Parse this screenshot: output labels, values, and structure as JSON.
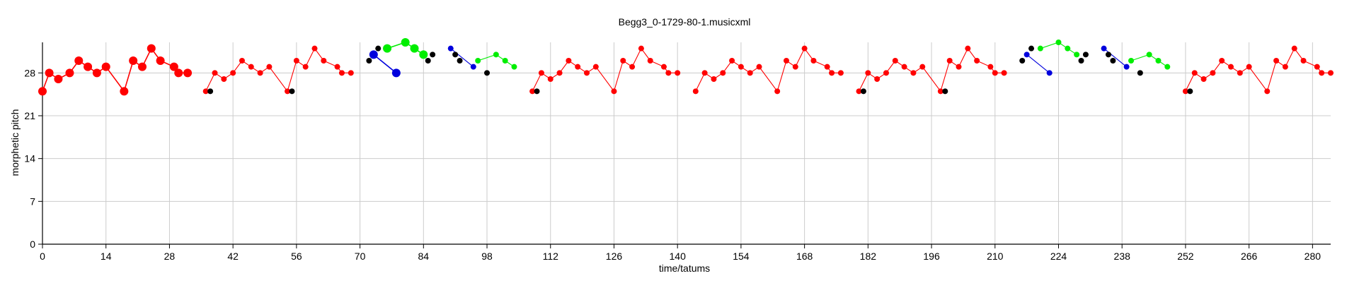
{
  "chart_data": {
    "type": "scatter",
    "title": "Begg3_0-1729-80-1.musicxml",
    "xlabel": "time/tatums",
    "ylabel": "morphetic pitch",
    "xlim": [
      0,
      284
    ],
    "ylim": [
      0,
      33
    ],
    "xticks": [
      0,
      14,
      28,
      42,
      56,
      70,
      84,
      98,
      112,
      126,
      140,
      154,
      168,
      182,
      196,
      210,
      224,
      238,
      252,
      266,
      280
    ],
    "yticks": [
      0,
      7,
      14,
      21,
      28
    ],
    "grid": true,
    "colors": {
      "red": "#ff0000",
      "blue": "#0000dd",
      "green": "#00ee00",
      "black": "#000000",
      "grid": "#cccccc",
      "axis": "#000000"
    },
    "series": [
      {
        "color": "red",
        "size": "large",
        "points": [
          [
            0,
            25
          ],
          [
            1.5,
            28
          ],
          [
            3.5,
            27
          ],
          [
            6,
            28
          ],
          [
            8,
            30
          ],
          [
            10,
            29
          ],
          [
            12,
            28
          ],
          [
            14,
            29
          ],
          [
            18,
            25
          ],
          [
            20,
            30
          ],
          [
            22,
            29
          ],
          [
            24,
            32
          ],
          [
            26,
            30
          ],
          [
            29,
            29
          ],
          [
            30,
            28
          ],
          [
            32,
            28
          ]
        ]
      },
      {
        "color": "red",
        "size": "small",
        "points": [
          [
            36,
            25
          ],
          [
            38,
            28
          ],
          [
            40,
            27
          ],
          [
            42,
            28
          ],
          [
            44,
            30
          ],
          [
            46,
            29
          ],
          [
            48,
            28
          ],
          [
            50,
            29
          ],
          [
            54,
            25
          ],
          [
            56,
            30
          ],
          [
            58,
            29
          ],
          [
            60,
            32
          ],
          [
            62,
            30
          ],
          [
            65,
            29
          ],
          [
            66,
            28
          ],
          [
            68,
            28
          ]
        ]
      },
      {
        "color": "black",
        "size": "small",
        "line": false,
        "points": [
          [
            37,
            25
          ],
          [
            55,
            25
          ]
        ]
      },
      {
        "color": "black",
        "size": "small",
        "line": false,
        "points": [
          [
            72,
            30
          ],
          [
            74,
            32
          ]
        ]
      },
      {
        "color": "blue",
        "size": "large",
        "points": [
          [
            73,
            31
          ],
          [
            78,
            28
          ]
        ]
      },
      {
        "color": "green",
        "size": "large",
        "points": [
          [
            76,
            32
          ],
          [
            80,
            33
          ],
          [
            82,
            32
          ],
          [
            84,
            31
          ]
        ]
      },
      {
        "color": "black",
        "size": "small",
        "line": false,
        "points": [
          [
            85,
            30
          ],
          [
            86,
            31
          ]
        ]
      },
      {
        "color": "blue",
        "size": "small",
        "points": [
          [
            90,
            32
          ],
          [
            95,
            29
          ]
        ]
      },
      {
        "color": "black",
        "size": "small",
        "line": false,
        "points": [
          [
            91,
            31
          ],
          [
            92,
            30
          ],
          [
            98,
            28
          ]
        ]
      },
      {
        "color": "green",
        "size": "small",
        "points": [
          [
            96,
            30
          ],
          [
            100,
            31
          ],
          [
            102,
            30
          ],
          [
            104,
            29
          ]
        ]
      },
      {
        "color": "red",
        "size": "small",
        "points": [
          [
            108,
            25
          ],
          [
            110,
            28
          ],
          [
            112,
            27
          ],
          [
            114,
            28
          ],
          [
            116,
            30
          ],
          [
            118,
            29
          ],
          [
            120,
            28
          ],
          [
            122,
            29
          ],
          [
            126,
            25
          ],
          [
            128,
            30
          ],
          [
            130,
            29
          ],
          [
            132,
            32
          ],
          [
            134,
            30
          ],
          [
            137,
            29
          ],
          [
            138,
            28
          ],
          [
            140,
            28
          ]
        ]
      },
      {
        "color": "black",
        "size": "small",
        "line": false,
        "points": [
          [
            109,
            25
          ]
        ]
      },
      {
        "color": "red",
        "size": "small",
        "points": [
          [
            144,
            25
          ],
          [
            146,
            28
          ],
          [
            148,
            27
          ],
          [
            150,
            28
          ],
          [
            152,
            30
          ],
          [
            154,
            29
          ],
          [
            156,
            28
          ],
          [
            158,
            29
          ],
          [
            162,
            25
          ],
          [
            164,
            30
          ],
          [
            166,
            29
          ],
          [
            168,
            32
          ],
          [
            170,
            30
          ],
          [
            173,
            29
          ],
          [
            174,
            28
          ],
          [
            176,
            28
          ]
        ]
      },
      {
        "color": "red",
        "size": "small",
        "points": [
          [
            180,
            25
          ],
          [
            182,
            28
          ],
          [
            184,
            27
          ],
          [
            186,
            28
          ],
          [
            188,
            30
          ],
          [
            190,
            29
          ],
          [
            192,
            28
          ],
          [
            194,
            29
          ],
          [
            198,
            25
          ],
          [
            200,
            30
          ],
          [
            202,
            29
          ],
          [
            204,
            32
          ],
          [
            206,
            30
          ],
          [
            209,
            29
          ],
          [
            210,
            28
          ],
          [
            212,
            28
          ]
        ]
      },
      {
        "color": "black",
        "size": "small",
        "line": false,
        "points": [
          [
            181,
            25
          ],
          [
            199,
            25
          ]
        ]
      },
      {
        "color": "black",
        "size": "small",
        "line": false,
        "points": [
          [
            216,
            30
          ],
          [
            218,
            32
          ]
        ]
      },
      {
        "color": "blue",
        "size": "small",
        "points": [
          [
            217,
            31
          ],
          [
            222,
            28
          ]
        ]
      },
      {
        "color": "green",
        "size": "small",
        "points": [
          [
            220,
            32
          ],
          [
            224,
            33
          ],
          [
            226,
            32
          ],
          [
            228,
            31
          ]
        ]
      },
      {
        "color": "black",
        "size": "small",
        "line": false,
        "points": [
          [
            229,
            30
          ],
          [
            230,
            31
          ]
        ]
      },
      {
        "color": "blue",
        "size": "small",
        "points": [
          [
            234,
            32
          ],
          [
            239,
            29
          ]
        ]
      },
      {
        "color": "black",
        "size": "small",
        "line": false,
        "points": [
          [
            235,
            31
          ],
          [
            236,
            30
          ],
          [
            242,
            28
          ]
        ]
      },
      {
        "color": "green",
        "size": "small",
        "points": [
          [
            240,
            30
          ],
          [
            244,
            31
          ],
          [
            246,
            30
          ],
          [
            248,
            29
          ]
        ]
      },
      {
        "color": "red",
        "size": "small",
        "points": [
          [
            252,
            25
          ],
          [
            254,
            28
          ],
          [
            256,
            27
          ],
          [
            258,
            28
          ],
          [
            260,
            30
          ],
          [
            262,
            29
          ],
          [
            264,
            28
          ],
          [
            266,
            29
          ],
          [
            270,
            25
          ],
          [
            272,
            30
          ],
          [
            274,
            29
          ],
          [
            276,
            32
          ],
          [
            278,
            30
          ],
          [
            281,
            29
          ],
          [
            282,
            28
          ],
          [
            284,
            28
          ]
        ]
      },
      {
        "color": "black",
        "size": "small",
        "line": false,
        "points": [
          [
            253,
            25
          ]
        ]
      }
    ]
  }
}
